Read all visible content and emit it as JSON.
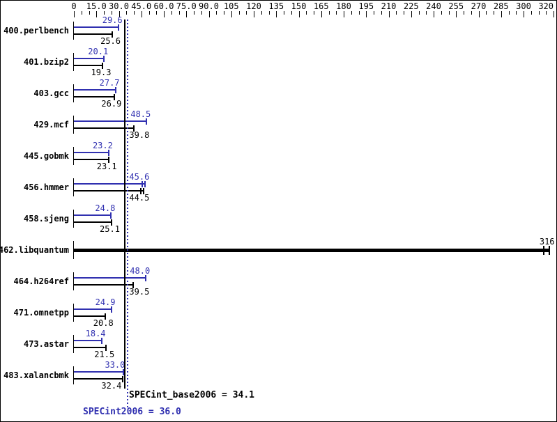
{
  "colors": {
    "peak_blue": "#3030b0",
    "base_black": "#000000",
    "background": "#ffffff",
    "border": "#000000"
  },
  "chart_data": {
    "type": "bar",
    "orientation": "horizontal",
    "title": "",
    "xlabel": "",
    "ylabel": "",
    "grid": false,
    "legend": "none",
    "axis": {
      "min": 0,
      "max": 320,
      "minor_step": 5,
      "major_ticks": [
        0,
        15,
        30,
        45,
        60,
        75,
        90,
        105,
        120,
        135,
        150,
        165,
        180,
        195,
        210,
        225,
        240,
        255,
        270,
        285,
        300,
        320
      ],
      "major_tick_labels": [
        "0",
        "15.0",
        "30.0",
        "45.0",
        "60.0",
        "75.0",
        "90.0",
        "105",
        "120",
        "135",
        "150",
        "165",
        "180",
        "195",
        "210",
        "225",
        "240",
        "255",
        "270",
        "285",
        "300",
        "320"
      ]
    },
    "series_meaning": {
      "peak": "SPECint2006 (blue, top bar)",
      "base": "SPECint_base2006 (black, bottom bar)"
    },
    "benchmarks": [
      {
        "name": "400.perlbench",
        "peak": 29.6,
        "base": 25.6,
        "peak_label": "29.6",
        "base_label": "25.6"
      },
      {
        "name": "401.bzip2",
        "peak": 20.1,
        "base": 19.3,
        "peak_label": "20.1",
        "base_label": "19.3"
      },
      {
        "name": "403.gcc",
        "peak": 27.7,
        "base": 26.9,
        "peak_label": "27.7",
        "base_label": "26.9"
      },
      {
        "name": "429.mcf",
        "peak": 48.5,
        "base": 39.8,
        "peak_label": "48.5",
        "base_label": "39.8"
      },
      {
        "name": "445.gobmk",
        "peak": 23.2,
        "base": 23.1,
        "peak_label": "23.2",
        "base_label": "23.1"
      },
      {
        "name": "456.hmmer",
        "peak": 45.6,
        "base": 44.5,
        "peak_label": "45.6",
        "base_label": "44.5",
        "peak_caps": [
          45.6,
          47.6
        ],
        "base_caps": [
          44.5,
          46.5
        ]
      },
      {
        "name": "458.sjeng",
        "peak": 24.8,
        "base": 25.1,
        "peak_label": "24.8",
        "base_label": "25.1"
      },
      {
        "name": "462.libquantum",
        "single": true,
        "thick": true,
        "base": 316,
        "base_label": "316",
        "base_caps": [
          313.3,
          317.0
        ]
      },
      {
        "name": "464.h264ref",
        "peak": 48.0,
        "base": 39.5,
        "peak_label": "48.0",
        "base_label": "39.5"
      },
      {
        "name": "471.omnetpp",
        "peak": 24.9,
        "base": 20.8,
        "peak_label": "24.9",
        "base_label": "20.8"
      },
      {
        "name": "473.astar",
        "peak": 18.4,
        "base": 21.5,
        "peak_label": "18.4",
        "base_label": "21.5"
      },
      {
        "name": "483.xalancbmk",
        "peak": 33.0,
        "base": 32.4,
        "peak_label": "33.0",
        "base_label": "32.4"
      }
    ],
    "summary": {
      "base_label": "SPECint_base2006 = 34.1",
      "base_value": 34.1,
      "peak_label": "SPECint2006 = 36.0",
      "peak_value": 36.0
    }
  }
}
